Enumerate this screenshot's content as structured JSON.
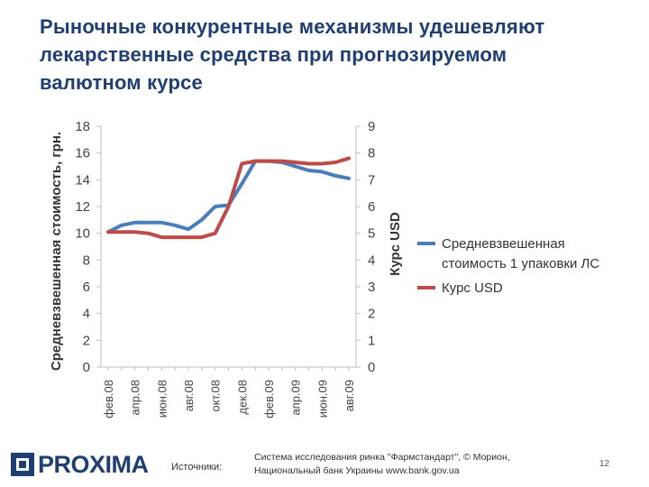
{
  "slide": {
    "title_lines": [
      "Рыночные конкурентные механизмы удешевляют",
      "лекарственные средства при прогнозируемом",
      "валютном курсе"
    ],
    "source_label": "Источники:",
    "source_lines": [
      "Система исследования ринка \"Фармстандарт\", © Морион,",
      "Национальный банк Украины  www.bank.gov.ua"
    ],
    "page_number": "12",
    "logo_text": "PROXIMA"
  },
  "chart_data": {
    "type": "line",
    "title": "",
    "categories": [
      "фев.08",
      "мар.08",
      "апр.08",
      "май.08",
      "июн.08",
      "июл.08",
      "авг.08",
      "сен.08",
      "окт.08",
      "ноя.08",
      "дек.08",
      "янв.09",
      "фев.09",
      "мар.09",
      "апр.09",
      "май.09",
      "июн.09",
      "июл.09",
      "авг.09"
    ],
    "category_labels_shown": [
      "фев.08",
      "апр.08",
      "июн.08",
      "авг.08",
      "окт.08",
      "дек.08",
      "фев.09",
      "апр.09",
      "июн.09",
      "авг.09"
    ],
    "ylabel_left": "Средневзвешенная стоимость, грн.",
    "ylabel_right": "Курс USD",
    "ylim_left": [
      0,
      18
    ],
    "yticks_left": [
      0,
      2,
      4,
      6,
      8,
      10,
      12,
      14,
      16,
      18
    ],
    "ylim_right": [
      0,
      9
    ],
    "yticks_right": [
      0,
      1,
      2,
      3,
      4,
      5,
      6,
      7,
      8,
      9
    ],
    "grid": false,
    "legend_position": "right",
    "series": [
      {
        "name": "Средневзвешенная стоимость 1 упаковки ЛС",
        "axis": "left",
        "color": "#4a7ebb",
        "values": [
          10.1,
          10.6,
          10.8,
          10.8,
          10.8,
          10.6,
          10.3,
          11.0,
          12.0,
          12.1,
          13.7,
          15.4,
          15.4,
          15.3,
          15.0,
          14.7,
          14.6,
          14.3,
          14.1
        ]
      },
      {
        "name": "Курс USD",
        "axis": "right",
        "color": "#be4b48",
        "values": [
          5.05,
          5.05,
          5.05,
          5.0,
          4.85,
          4.85,
          4.85,
          4.85,
          5.0,
          6.0,
          7.6,
          7.7,
          7.7,
          7.7,
          7.65,
          7.6,
          7.6,
          7.65,
          7.8
        ]
      }
    ]
  }
}
